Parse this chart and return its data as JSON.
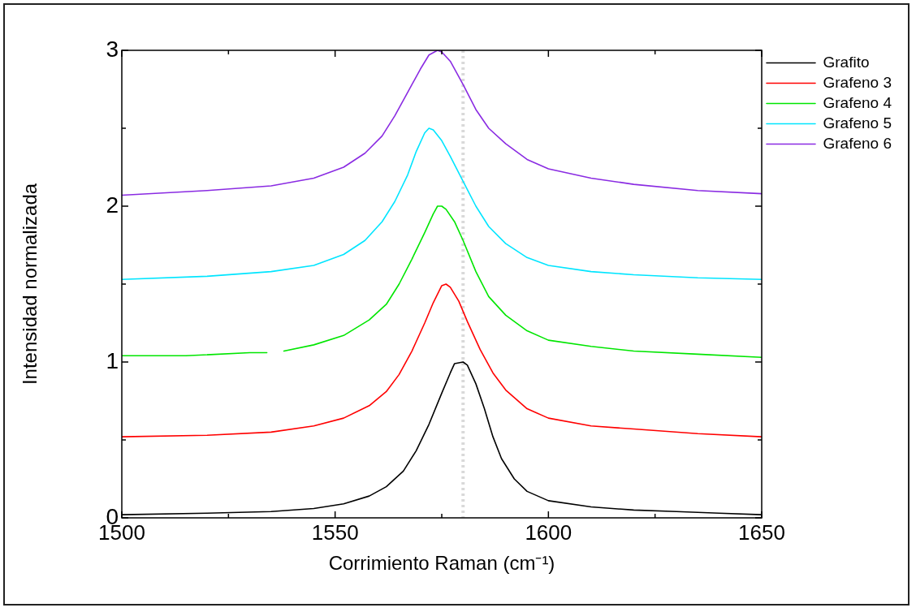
{
  "chart_data": {
    "type": "line",
    "xlabel": "Corrimiento Raman (cm⁻¹)",
    "ylabel": "Intensidad normalizada",
    "xlim": [
      1500,
      1650
    ],
    "xticks": [
      1500,
      {
        "value": 1525,
        "label": null
      },
      1550,
      {
        "value": 1575,
        "label": null
      },
      1600,
      {
        "value": 1625,
        "label": null
      },
      1650
    ],
    "ylim": [
      0,
      3
    ],
    "yticks": [
      0,
      {
        "value": 0.5,
        "label": null
      },
      1,
      {
        "value": 1.5,
        "label": null
      },
      2,
      {
        "value": 2.5,
        "label": null
      },
      3
    ],
    "legend": "top right",
    "marker": "none",
    "line_style": "solid",
    "ref_lines": [
      {
        "axis": "x",
        "value": 1580,
        "color": "#d9d9d9",
        "line_style": "dotted"
      }
    ],
    "series": [
      {
        "name": "Grafito",
        "color": "#000000",
        "x": [
          1500,
          1520,
          1535,
          1545,
          1552,
          1558,
          1562,
          1566,
          1569,
          1572,
          1575,
          1577,
          1578,
          1580,
          1581,
          1583,
          1585,
          1587,
          1589,
          1592,
          1595,
          1600,
          1610,
          1620,
          1630,
          1640,
          1650
        ],
        "values": [
          0.02,
          0.03,
          0.04,
          0.06,
          0.09,
          0.14,
          0.2,
          0.3,
          0.43,
          0.6,
          0.8,
          0.93,
          0.99,
          1.0,
          0.98,
          0.86,
          0.7,
          0.52,
          0.38,
          0.25,
          0.17,
          0.11,
          0.07,
          0.05,
          0.04,
          0.03,
          0.02
        ]
      },
      {
        "name": "Grafeno 3",
        "color": "#ff0000",
        "x": [
          1500,
          1520,
          1535,
          1545,
          1552,
          1558,
          1562,
          1565,
          1568,
          1571,
          1573,
          1575,
          1576,
          1577,
          1579,
          1581,
          1584,
          1587,
          1590,
          1595,
          1600,
          1610,
          1620,
          1635,
          1650
        ],
        "values": [
          0.52,
          0.53,
          0.55,
          0.59,
          0.64,
          0.72,
          0.81,
          0.92,
          1.07,
          1.25,
          1.38,
          1.49,
          1.5,
          1.48,
          1.39,
          1.26,
          1.08,
          0.93,
          0.82,
          0.7,
          0.64,
          0.59,
          0.57,
          0.54,
          0.52
        ]
      },
      {
        "name": "Grafeno 4",
        "color": "#00e600",
        "x": [
          1500,
          1515,
          1530,
          1534,
          1536,
          1538,
          1545,
          1552,
          1558,
          1562,
          1565,
          1568,
          1571,
          1573,
          1574,
          1575,
          1576,
          1578,
          1580,
          1583,
          1586,
          1590,
          1595,
          1600,
          1610,
          1620,
          1635,
          1650
        ],
        "values": [
          1.04,
          1.04,
          1.06,
          1.06,
          null,
          1.07,
          1.11,
          1.17,
          1.27,
          1.37,
          1.5,
          1.66,
          1.83,
          1.95,
          2.0,
          2.0,
          1.98,
          1.9,
          1.78,
          1.58,
          1.42,
          1.3,
          1.2,
          1.14,
          1.1,
          1.07,
          1.05,
          1.03
        ]
      },
      {
        "name": "Grafeno 5",
        "color": "#00e5ff",
        "x": [
          1500,
          1520,
          1535,
          1545,
          1552,
          1557,
          1561,
          1564,
          1567,
          1569,
          1571,
          1572,
          1573,
          1575,
          1577,
          1580,
          1583,
          1586,
          1590,
          1595,
          1600,
          1610,
          1620,
          1635,
          1650
        ],
        "values": [
          1.53,
          1.55,
          1.58,
          1.62,
          1.69,
          1.78,
          1.9,
          2.03,
          2.2,
          2.35,
          2.47,
          2.5,
          2.49,
          2.42,
          2.32,
          2.16,
          2.0,
          1.87,
          1.76,
          1.67,
          1.62,
          1.58,
          1.56,
          1.54,
          1.53
        ]
      },
      {
        "name": "Grafeno 6",
        "color": "#8a2be2",
        "x": [
          1500,
          1520,
          1535,
          1545,
          1552,
          1557,
          1561,
          1564,
          1567,
          1570,
          1572,
          1574,
          1575,
          1577,
          1580,
          1583,
          1586,
          1590,
          1595,
          1600,
          1610,
          1620,
          1635,
          1650
        ],
        "values": [
          2.07,
          2.1,
          2.13,
          2.18,
          2.25,
          2.34,
          2.45,
          2.58,
          2.73,
          2.88,
          2.97,
          3.0,
          2.99,
          2.93,
          2.78,
          2.62,
          2.5,
          2.4,
          2.3,
          2.24,
          2.18,
          2.14,
          2.1,
          2.08
        ]
      }
    ]
  }
}
